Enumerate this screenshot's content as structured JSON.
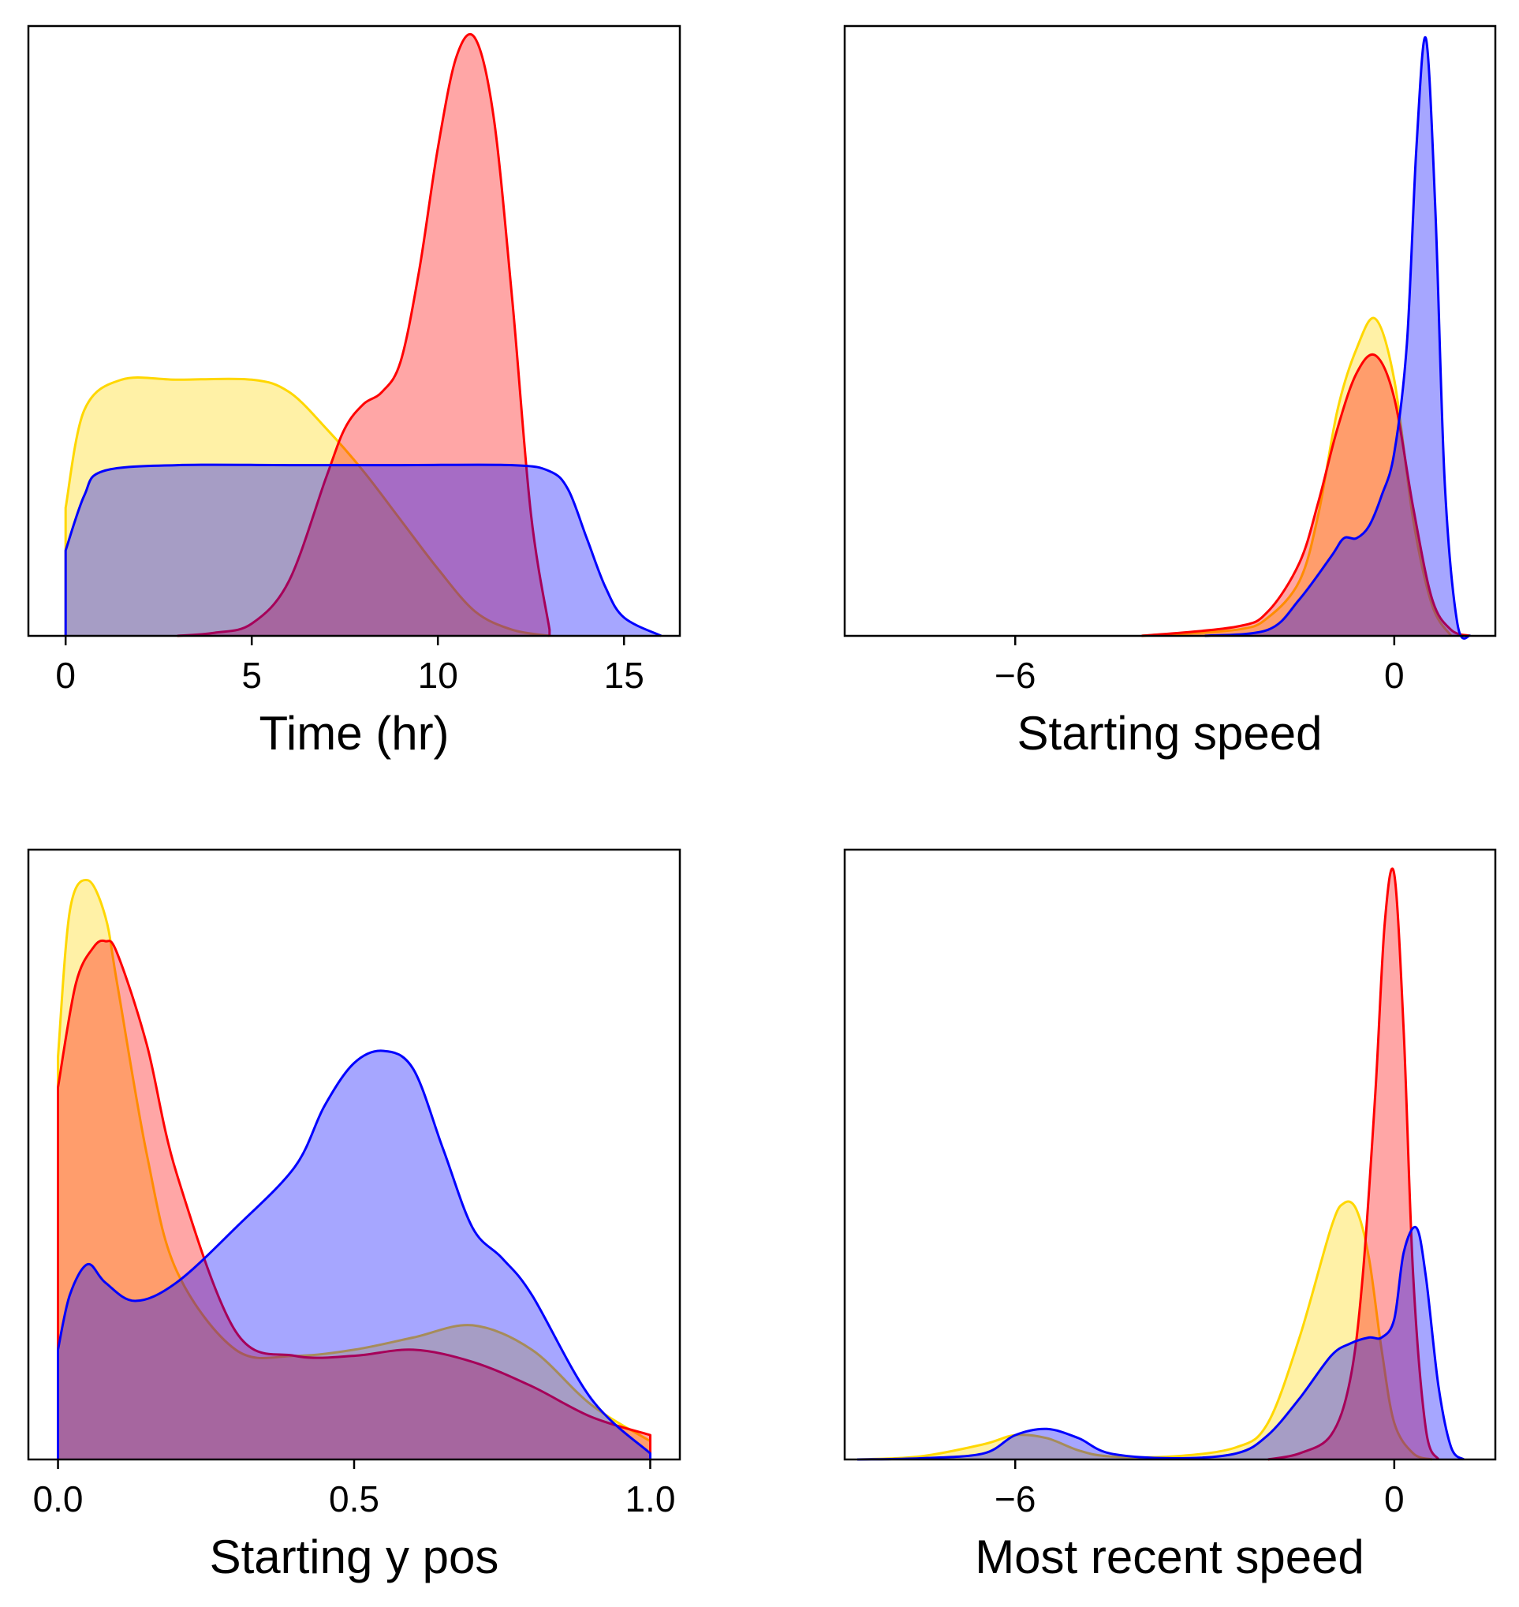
{
  "colors": {
    "gold": "#FFD700",
    "red": "#FF0000",
    "blue": "#0000FF"
  },
  "chart_data": [
    {
      "type": "area",
      "xlabel": "Time (hr)",
      "xlim": [
        -1,
        16.5
      ],
      "xticks": [
        0,
        5,
        10,
        15
      ],
      "xtick_labels": [
        "0",
        "5",
        "10",
        "15"
      ],
      "ylim": [
        0,
        1
      ],
      "yticks_visible": false,
      "grid": false,
      "series": [
        {
          "color": "#FFD700",
          "x": [
            0,
            0.5,
            1.5,
            3,
            5,
            6,
            7,
            8,
            9,
            10,
            11,
            12,
            13
          ],
          "y": [
            0.21,
            0.37,
            0.42,
            0.42,
            0.42,
            0.4,
            0.34,
            0.27,
            0.19,
            0.11,
            0.04,
            0.01,
            0
          ]
        },
        {
          "color": "#FF0000",
          "x": [
            3,
            4,
            5,
            6,
            7,
            7.5,
            8,
            8.5,
            9,
            9.5,
            10,
            10.5,
            11,
            11.5,
            12,
            12.5,
            13
          ],
          "y": [
            0,
            0.005,
            0.02,
            0.09,
            0.26,
            0.34,
            0.38,
            0.4,
            0.45,
            0.6,
            0.8,
            0.95,
            0.98,
            0.85,
            0.55,
            0.2,
            0.01
          ]
        },
        {
          "color": "#0000FF",
          "x": [
            0,
            0.5,
            1,
            3,
            6,
            9,
            12,
            13,
            13.5,
            14,
            14.5,
            15,
            16
          ],
          "y": [
            0.14,
            0.23,
            0.27,
            0.28,
            0.28,
            0.28,
            0.28,
            0.27,
            0.24,
            0.16,
            0.08,
            0.03,
            0
          ]
        }
      ]
    },
    {
      "type": "area",
      "xlabel": "Starting speed",
      "xlim": [
        -8.7,
        1.6
      ],
      "xticks": [
        -6,
        0
      ],
      "xtick_labels": [
        "−6",
        "0"
      ],
      "ylim": [
        0,
        1
      ],
      "yticks_visible": false,
      "grid": false,
      "series": [
        {
          "color": "#FFD700",
          "x": [
            -4,
            -2.5,
            -2,
            -1.5,
            -1.2,
            -0.9,
            -0.6,
            -0.3,
            0,
            0.3,
            0.6,
            0.9
          ],
          "y": [
            0,
            0.01,
            0.03,
            0.09,
            0.2,
            0.37,
            0.47,
            0.52,
            0.42,
            0.19,
            0.05,
            0
          ]
        },
        {
          "color": "#FF0000",
          "x": [
            -4,
            -2.5,
            -2,
            -1.5,
            -1.2,
            -0.9,
            -0.6,
            -0.3,
            0,
            0.3,
            0.6,
            0.9,
            1.2
          ],
          "y": [
            0,
            0.015,
            0.04,
            0.12,
            0.22,
            0.34,
            0.43,
            0.46,
            0.39,
            0.21,
            0.06,
            0.01,
            0
          ]
        },
        {
          "color": "#0000FF",
          "x": [
            -3,
            -2,
            -1.5,
            -1,
            -0.8,
            -0.6,
            -0.4,
            -0.2,
            0,
            0.2,
            0.35,
            0.5,
            0.65,
            0.8,
            1.0,
            1.2
          ],
          "y": [
            0,
            0.01,
            0.06,
            0.13,
            0.16,
            0.16,
            0.18,
            0.23,
            0.3,
            0.48,
            0.8,
            0.98,
            0.7,
            0.25,
            0.02,
            0
          ]
        }
      ]
    },
    {
      "type": "area",
      "xlabel": "Starting y pos",
      "xlim": [
        -0.05,
        1.05
      ],
      "xticks": [
        0,
        0.5,
        1
      ],
      "xtick_labels": [
        "0.0",
        "0.5",
        "1.0"
      ],
      "ylim": [
        0,
        1
      ],
      "yticks_visible": false,
      "grid": false,
      "series": [
        {
          "color": "#FFD700",
          "x": [
            0,
            0.02,
            0.05,
            0.08,
            0.1,
            0.15,
            0.2,
            0.3,
            0.4,
            0.5,
            0.6,
            0.7,
            0.8,
            0.9,
            1.0
          ],
          "y": [
            0.66,
            0.9,
            0.95,
            0.89,
            0.78,
            0.5,
            0.31,
            0.18,
            0.17,
            0.18,
            0.2,
            0.22,
            0.18,
            0.09,
            0.03
          ]
        },
        {
          "color": "#FF0000",
          "x": [
            0,
            0.03,
            0.06,
            0.08,
            0.1,
            0.15,
            0.2,
            0.3,
            0.4,
            0.5,
            0.6,
            0.7,
            0.8,
            0.9,
            1.0
          ],
          "y": [
            0.61,
            0.78,
            0.84,
            0.85,
            0.83,
            0.68,
            0.47,
            0.21,
            0.17,
            0.17,
            0.18,
            0.16,
            0.12,
            0.07,
            0.04
          ]
        },
        {
          "color": "#0000FF",
          "x": [
            0,
            0.02,
            0.05,
            0.08,
            0.13,
            0.2,
            0.3,
            0.4,
            0.45,
            0.5,
            0.55,
            0.6,
            0.65,
            0.7,
            0.75,
            0.8,
            0.9,
            1.0
          ],
          "y": [
            0.18,
            0.27,
            0.32,
            0.29,
            0.26,
            0.29,
            0.38,
            0.48,
            0.58,
            0.65,
            0.67,
            0.64,
            0.51,
            0.38,
            0.33,
            0.27,
            0.1,
            0.01
          ]
        }
      ]
    },
    {
      "type": "area",
      "xlabel": "Most recent speed",
      "xlim": [
        -8.7,
        1.6
      ],
      "xticks": [
        -6,
        0
      ],
      "xtick_labels": [
        "−6",
        "0"
      ],
      "ylim": [
        0,
        1
      ],
      "yticks_visible": false,
      "grid": false,
      "series": [
        {
          "color": "#FFD700",
          "x": [
            -8.5,
            -7.5,
            -6.5,
            -6,
            -5.5,
            -5,
            -4.5,
            -3.5,
            -2.5,
            -2,
            -1.5,
            -1,
            -0.8,
            -0.6,
            -0.4,
            -0.2,
            0,
            0.3,
            0.6
          ],
          "y": [
            0,
            0.005,
            0.025,
            0.04,
            0.035,
            0.015,
            0.005,
            0.005,
            0.02,
            0.06,
            0.2,
            0.38,
            0.42,
            0.41,
            0.33,
            0.18,
            0.06,
            0.01,
            0
          ]
        },
        {
          "color": "#FF0000",
          "x": [
            -2,
            -1.5,
            -1,
            -0.7,
            -0.5,
            -0.3,
            -0.15,
            0,
            0.15,
            0.3,
            0.5,
            0.7
          ],
          "y": [
            0,
            0.01,
            0.04,
            0.13,
            0.3,
            0.6,
            0.88,
            0.96,
            0.7,
            0.3,
            0.05,
            0
          ]
        },
        {
          "color": "#0000FF",
          "x": [
            -8.5,
            -7.5,
            -6.5,
            -6,
            -5.5,
            -5,
            -4.5,
            -3.5,
            -2.5,
            -2,
            -1.5,
            -1,
            -0.7,
            -0.4,
            -0.2,
            0,
            0.15,
            0.35,
            0.5,
            0.7,
            0.9,
            1.1
          ],
          "y": [
            0,
            0.002,
            0.01,
            0.04,
            0.05,
            0.035,
            0.01,
            0.002,
            0.01,
            0.04,
            0.1,
            0.17,
            0.19,
            0.2,
            0.2,
            0.23,
            0.34,
            0.38,
            0.3,
            0.12,
            0.02,
            0
          ]
        }
      ]
    }
  ]
}
